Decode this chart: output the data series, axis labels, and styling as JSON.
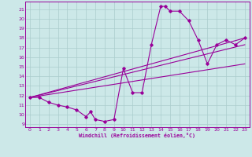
{
  "bg_color": "#cce8e8",
  "line_color": "#990099",
  "grid_color": "#aacccc",
  "xlabel": "Windchill (Refroidissement éolien,°C)",
  "xlim": [
    -0.5,
    23.5
  ],
  "ylim": [
    8.7,
    21.8
  ],
  "yticks": [
    9,
    10,
    11,
    12,
    13,
    14,
    15,
    16,
    17,
    18,
    19,
    20,
    21
  ],
  "xticks": [
    0,
    1,
    2,
    3,
    4,
    5,
    6,
    7,
    8,
    9,
    10,
    11,
    12,
    13,
    14,
    15,
    16,
    17,
    18,
    19,
    20,
    21,
    22,
    23
  ],
  "series": [
    [
      0,
      11.8
    ],
    [
      1,
      11.8
    ],
    [
      2,
      11.3
    ],
    [
      3,
      11.0
    ],
    [
      4,
      10.8
    ],
    [
      5,
      10.5
    ],
    [
      6,
      9.8
    ],
    [
      6.5,
      10.3
    ],
    [
      7,
      9.5
    ],
    [
      8,
      9.3
    ],
    [
      9,
      9.5
    ],
    [
      10,
      14.8
    ],
    [
      11,
      12.3
    ],
    [
      12,
      12.3
    ],
    [
      13,
      17.3
    ],
    [
      14,
      21.3
    ],
    [
      14.5,
      21.3
    ],
    [
      15,
      20.8
    ],
    [
      16,
      20.8
    ],
    [
      17,
      19.8
    ],
    [
      18,
      17.8
    ],
    [
      19,
      15.3
    ],
    [
      20,
      17.3
    ],
    [
      21,
      17.8
    ],
    [
      22,
      17.3
    ],
    [
      23,
      18.0
    ]
  ],
  "line1": [
    [
      0,
      11.8
    ],
    [
      23,
      18.0
    ]
  ],
  "line2": [
    [
      0,
      11.8
    ],
    [
      23,
      17.3
    ]
  ],
  "line3": [
    [
      0,
      11.8
    ],
    [
      23,
      15.3
    ]
  ]
}
